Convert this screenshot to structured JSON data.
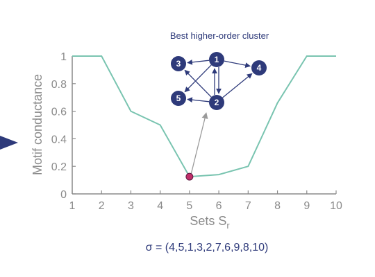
{
  "chart_data": {
    "type": "line",
    "x": [
      1,
      2,
      3,
      4,
      5,
      6,
      7,
      8,
      9,
      10
    ],
    "series": [
      {
        "values": [
          1.0,
          1.0,
          0.6,
          0.5,
          0.125,
          0.14,
          0.2,
          0.66,
          1.0,
          1.0
        ],
        "color": "#79c4b0"
      }
    ],
    "xlabel": "Sets S",
    "xlabel_subscript": "r",
    "ylabel": "Motif conductance",
    "xlim": [
      1,
      10
    ],
    "ylim": [
      0,
      1
    ],
    "xticks": [
      "1",
      "2",
      "3",
      "4",
      "5",
      "6",
      "7",
      "8",
      "9",
      "10"
    ],
    "yticks": [
      "0",
      "0.2",
      "0.4",
      "0.6",
      "0.8",
      "1"
    ],
    "grid": false,
    "highlight": {
      "x": 5,
      "y": 0.125,
      "color": "#c0306a"
    },
    "annotation": "σ = (4,5,1,3,2,7,6,9,8,10)",
    "inset": {
      "title": "Best higher-order cluster",
      "nodes": [
        "1",
        "2",
        "3",
        "4",
        "5"
      ],
      "edges": [
        [
          "1",
          "3"
        ],
        [
          "1",
          "4"
        ],
        [
          "1",
          "2"
        ],
        [
          "2",
          "1"
        ],
        [
          "1",
          "5"
        ],
        [
          "2",
          "3"
        ],
        [
          "2",
          "4"
        ],
        [
          "2",
          "5"
        ]
      ],
      "node_color": "#2e3a7a"
    }
  }
}
